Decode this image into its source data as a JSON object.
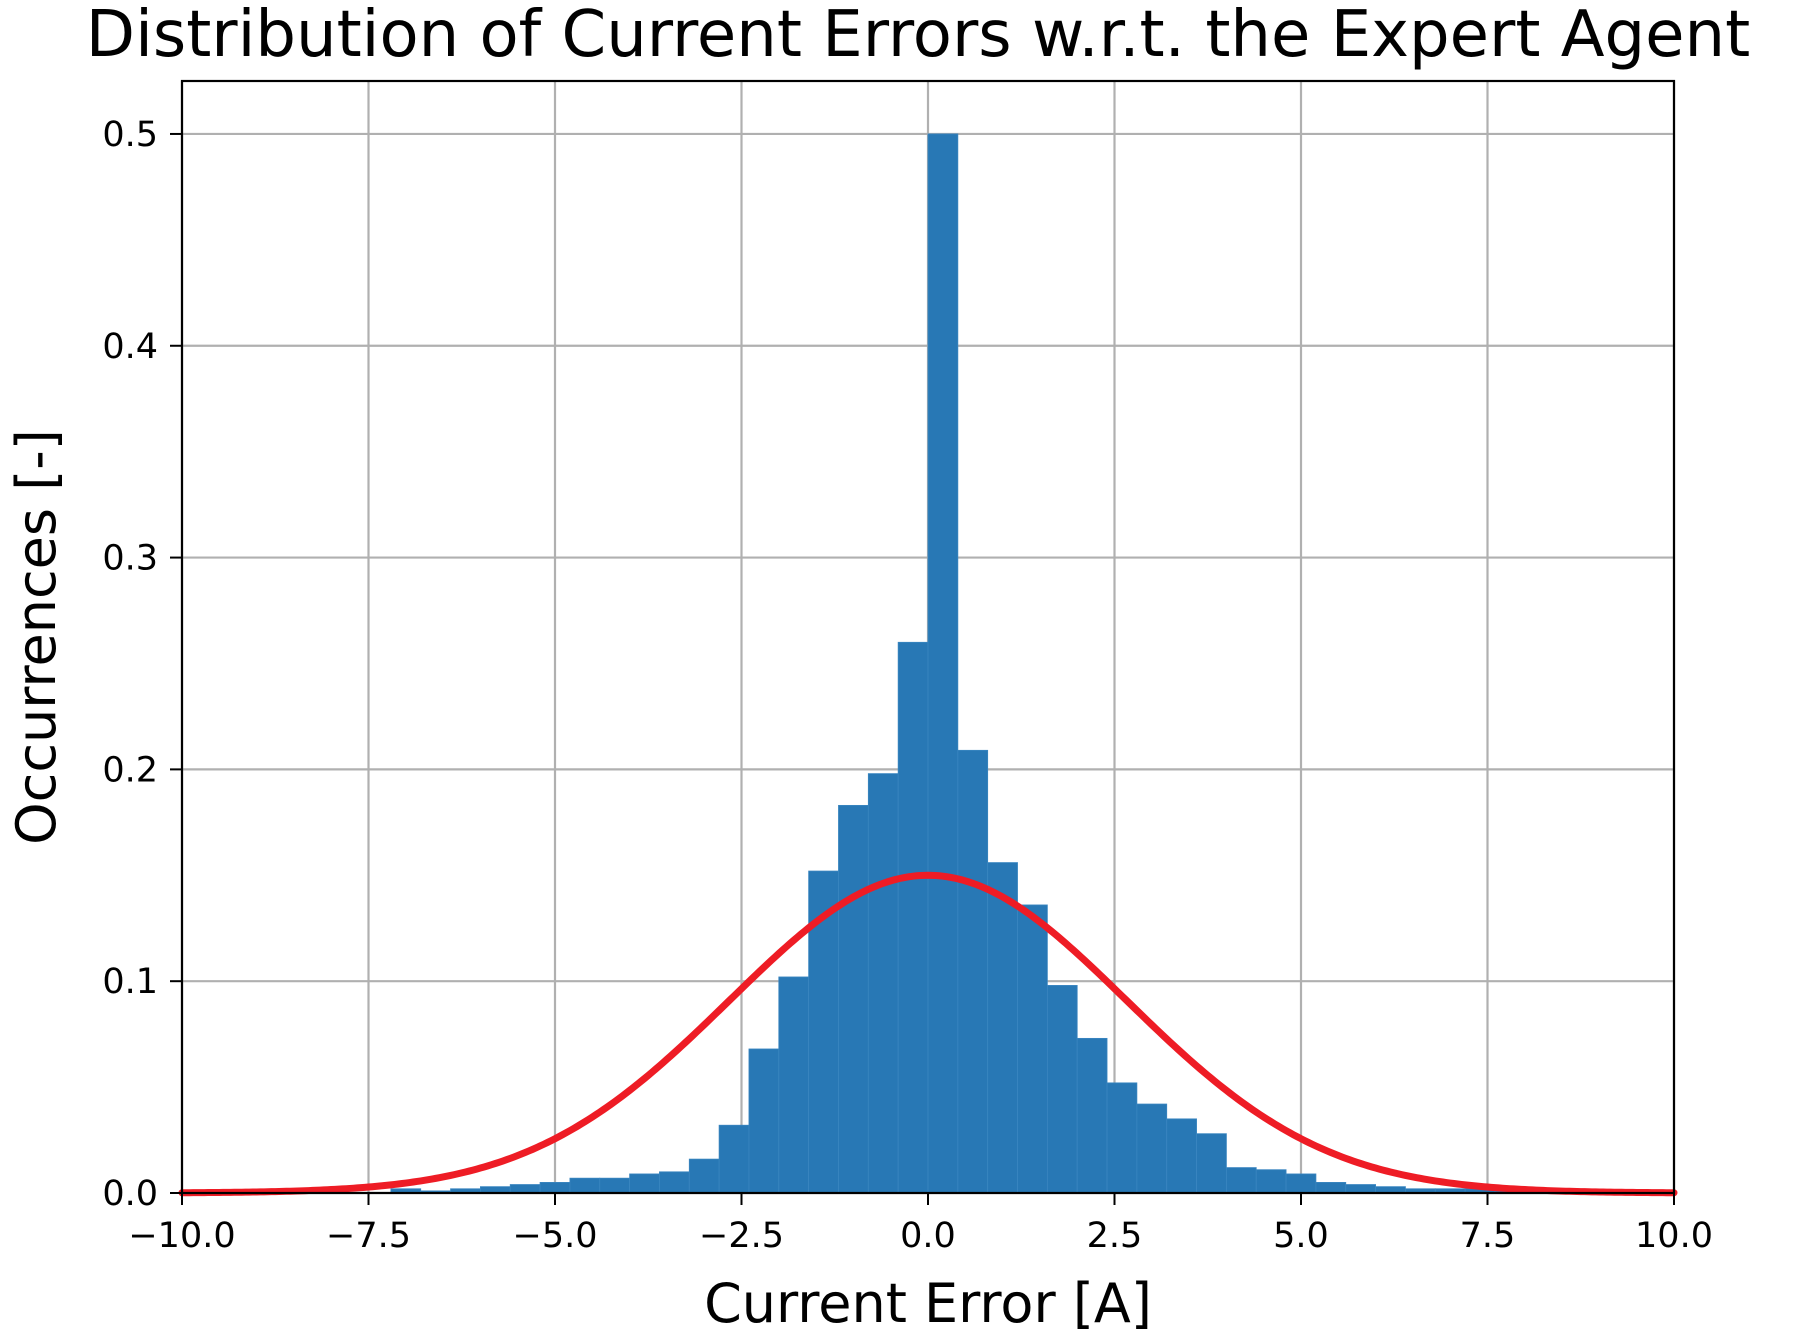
{
  "chart_data": {
    "type": "bar",
    "title": "Distribution of Current Errors w.r.t. the Expert Agent",
    "xlabel": "Current Error [A]",
    "ylabel": "Occurrences [-]",
    "xlim": [
      -10.0,
      10.0
    ],
    "ylim": [
      0.0,
      0.525
    ],
    "xticks": [
      -10.0,
      -7.5,
      -5.0,
      -2.5,
      0.0,
      2.5,
      5.0,
      7.5,
      10.0
    ],
    "xtick_labels": [
      "−10.0",
      "−7.5",
      "−5.0",
      "−2.5",
      "0.0",
      "2.5",
      "5.0",
      "7.5",
      "10.0"
    ],
    "yticks": [
      0.0,
      0.1,
      0.2,
      0.3,
      0.4,
      0.5
    ],
    "ytick_labels": [
      "0.0",
      "0.1",
      "0.2",
      "0.3",
      "0.4",
      "0.5"
    ],
    "grid": true,
    "bar_color": "#2878b5",
    "curve_color": "#ee1c25",
    "histogram": {
      "bin_edges": [
        -7.2,
        -6.8,
        -6.4,
        -6.0,
        -5.6,
        -5.2,
        -4.8,
        -4.4,
        -4.0,
        -3.6,
        -3.2,
        -2.8,
        -2.4,
        -2.0,
        -1.6,
        -1.2,
        -0.8,
        -0.4,
        0.0,
        0.4,
        0.8,
        1.2,
        1.6,
        2.0,
        2.4,
        2.8,
        3.2,
        3.6,
        4.0,
        4.4,
        4.8,
        5.2,
        5.6,
        6.0,
        6.4,
        6.8,
        7.2,
        7.6,
        8.0
      ],
      "values": [
        0.002,
        0.001,
        0.002,
        0.003,
        0.004,
        0.005,
        0.007,
        0.007,
        0.009,
        0.01,
        0.016,
        0.032,
        0.068,
        0.102,
        0.152,
        0.183,
        0.198,
        0.26,
        0.5,
        0.209,
        0.156,
        0.136,
        0.098,
        0.073,
        0.052,
        0.042,
        0.035,
        0.028,
        0.012,
        0.011,
        0.009,
        0.005,
        0.004,
        0.003,
        0.002,
        0.002,
        0.002,
        0.001
      ]
    },
    "normal_fit": {
      "mean": 0.0,
      "std": 2.66,
      "peak": 0.15
    }
  }
}
